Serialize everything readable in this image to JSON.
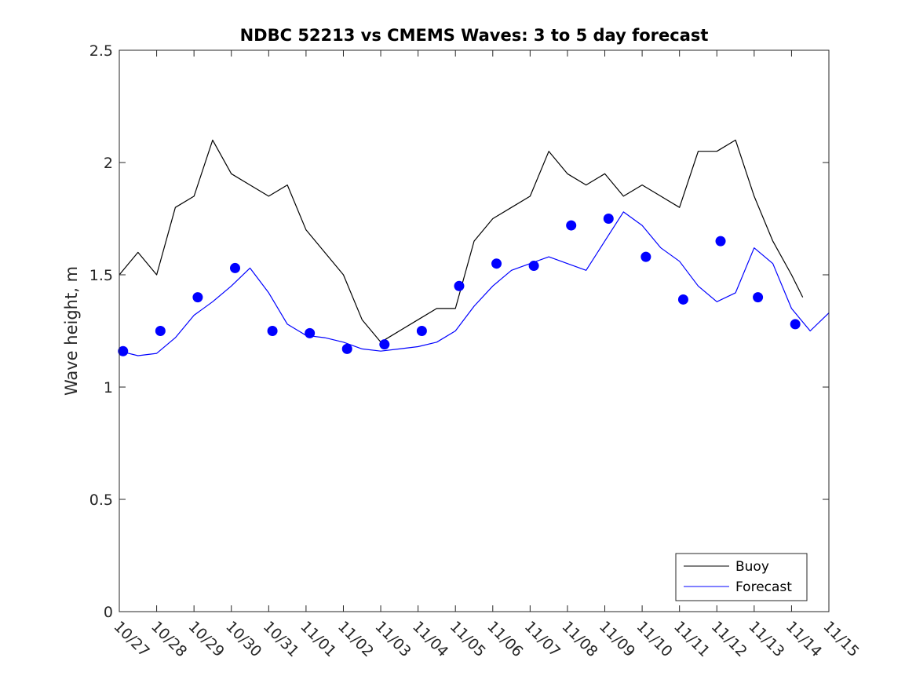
{
  "chart_data": {
    "type": "line",
    "title": "NDBC 52213 vs CMEMS Waves: 3 to 5 day forecast",
    "xlabel": "",
    "ylabel": "Wave height, m",
    "xlim": [
      0,
      19
    ],
    "ylim": [
      0,
      2.5
    ],
    "yticks": [
      0,
      0.5,
      1,
      1.5,
      2,
      2.5
    ],
    "ytick_labels": [
      "0",
      "0.5",
      "1",
      "1.5",
      "2",
      "2.5"
    ],
    "xtick_labels": [
      "10/27",
      "10/28",
      "10/29",
      "10/30",
      "10/31",
      "11/01",
      "11/02",
      "11/03",
      "11/04",
      "11/05",
      "11/06",
      "11/07",
      "11/08",
      "11/09",
      "11/10",
      "11/11",
      "11/12",
      "11/13",
      "11/14",
      "11/15"
    ],
    "legend": {
      "position": "bottom-right",
      "entries": [
        "Buoy",
        "Forecast"
      ]
    },
    "colors": {
      "buoy": "#000000",
      "forecast": "#0000ff",
      "axis": "#262626"
    },
    "series": [
      {
        "name": "Buoy",
        "color": "#000000",
        "x": [
          0,
          0.5,
          1,
          1.5,
          2,
          2.5,
          3,
          3.5,
          4,
          4.5,
          5,
          5.5,
          6,
          6.5,
          7,
          7.5,
          8,
          8.5,
          9,
          9.5,
          10,
          10.5,
          11,
          11.5,
          12,
          12.5,
          13,
          13.5,
          14,
          14.5,
          15,
          15.5,
          16,
          16.5,
          17,
          17.5,
          18,
          18.3
        ],
        "y": [
          1.5,
          1.6,
          1.5,
          1.8,
          1.85,
          2.1,
          1.95,
          1.9,
          1.85,
          1.9,
          1.7,
          1.6,
          1.5,
          1.3,
          1.2,
          1.25,
          1.3,
          1.35,
          1.35,
          1.65,
          1.75,
          1.8,
          1.85,
          2.05,
          1.95,
          1.9,
          1.95,
          1.85,
          1.9,
          1.85,
          1.8,
          2.05,
          2.05,
          2.1,
          1.85,
          1.65,
          1.5,
          1.4
        ]
      },
      {
        "name": "Forecast",
        "color": "#0000ff",
        "x": [
          0,
          0.5,
          1,
          1.5,
          2,
          2.5,
          3,
          3.5,
          4,
          4.5,
          5,
          5.5,
          6,
          6.5,
          7,
          7.5,
          8,
          8.5,
          9,
          9.5,
          10,
          10.5,
          11,
          11.5,
          12,
          12.5,
          13,
          13.5,
          14,
          14.5,
          15,
          15.5,
          16,
          16.5,
          17,
          17.5,
          18,
          18.5,
          19
        ],
        "y": [
          1.16,
          1.14,
          1.15,
          1.22,
          1.32,
          1.38,
          1.45,
          1.53,
          1.42,
          1.28,
          1.23,
          1.22,
          1.2,
          1.17,
          1.16,
          1.17,
          1.18,
          1.2,
          1.25,
          1.36,
          1.45,
          1.52,
          1.55,
          1.58,
          1.55,
          1.52,
          1.65,
          1.78,
          1.72,
          1.62,
          1.56,
          1.45,
          1.38,
          1.42,
          1.62,
          1.55,
          1.35,
          1.25,
          1.33
        ]
      },
      {
        "name": "Forecast markers",
        "color": "#0000ff",
        "x": [
          0.1,
          1.1,
          2.1,
          3.1,
          4.1,
          5.1,
          6.1,
          7.1,
          8.1,
          9.1,
          10.1,
          11.1,
          12.1,
          13.1,
          14.1,
          15.1,
          16.1,
          17.1,
          18.1
        ],
        "y": [
          1.16,
          1.25,
          1.4,
          1.53,
          1.25,
          1.24,
          1.17,
          1.19,
          1.25,
          1.45,
          1.55,
          1.54,
          1.72,
          1.75,
          1.58,
          1.39,
          1.65,
          1.4,
          1.28
        ]
      }
    ]
  }
}
